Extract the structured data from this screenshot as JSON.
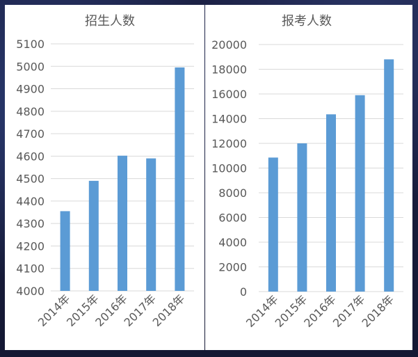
{
  "chart_data": [
    {
      "type": "bar",
      "title": "招生人数",
      "categories": [
        "2014年",
        "2015年",
        "2016年",
        "2017年",
        "2018年"
      ],
      "values": [
        4355,
        4490,
        4602,
        4590,
        4995
      ],
      "ylim": [
        4000,
        5100
      ],
      "yticks": [
        4000,
        4100,
        4200,
        4300,
        4400,
        4500,
        4600,
        4700,
        4800,
        4900,
        5000,
        5100
      ],
      "bar_color": "#5b9bd5",
      "grid": true
    },
    {
      "type": "bar",
      "title": "报考人数",
      "categories": [
        "2014年",
        "2015年",
        "2016年",
        "2017年",
        "2018年"
      ],
      "values": [
        10850,
        12000,
        14350,
        15900,
        18800
      ],
      "ylim": [
        0,
        20000
      ],
      "yticks": [
        0,
        2000,
        4000,
        6000,
        8000,
        10000,
        12000,
        14000,
        16000,
        18000,
        20000
      ],
      "bar_color": "#5b9bd5",
      "grid": true
    }
  ]
}
